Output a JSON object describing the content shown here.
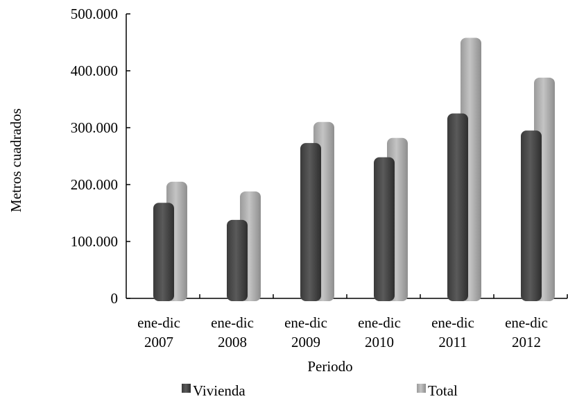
{
  "chart_data": {
    "type": "bar",
    "title": "",
    "xlabel": "Periodo",
    "ylabel": "Metros cuadrados",
    "categories": [
      [
        "ene-dic",
        "2007"
      ],
      [
        "ene-dic",
        "2008"
      ],
      [
        "ene-dic",
        "2009"
      ],
      [
        "ene-dic",
        "2010"
      ],
      [
        "ene-dic",
        "2011"
      ],
      [
        "ene-dic",
        "2012"
      ]
    ],
    "series": [
      {
        "name": "Vivienda",
        "color": "#4a4a4a",
        "values": [
          168000,
          138000,
          273000,
          248000,
          325000,
          295000
        ]
      },
      {
        "name": "Total",
        "color": "#a9a9a9",
        "values": [
          205000,
          188000,
          310000,
          282000,
          458000,
          388000
        ]
      }
    ],
    "ylim": [
      0,
      500000
    ],
    "yticks": [
      {
        "value": 0,
        "label": "0"
      },
      {
        "value": 100000,
        "label": "100.000"
      },
      {
        "value": 200000,
        "label": "200.000"
      },
      {
        "value": 300000,
        "label": "300.000"
      },
      {
        "value": 400000,
        "label": "400.000"
      },
      {
        "value": 500000,
        "label": "500.000"
      }
    ],
    "grid": false,
    "legend_position": "bottom"
  }
}
